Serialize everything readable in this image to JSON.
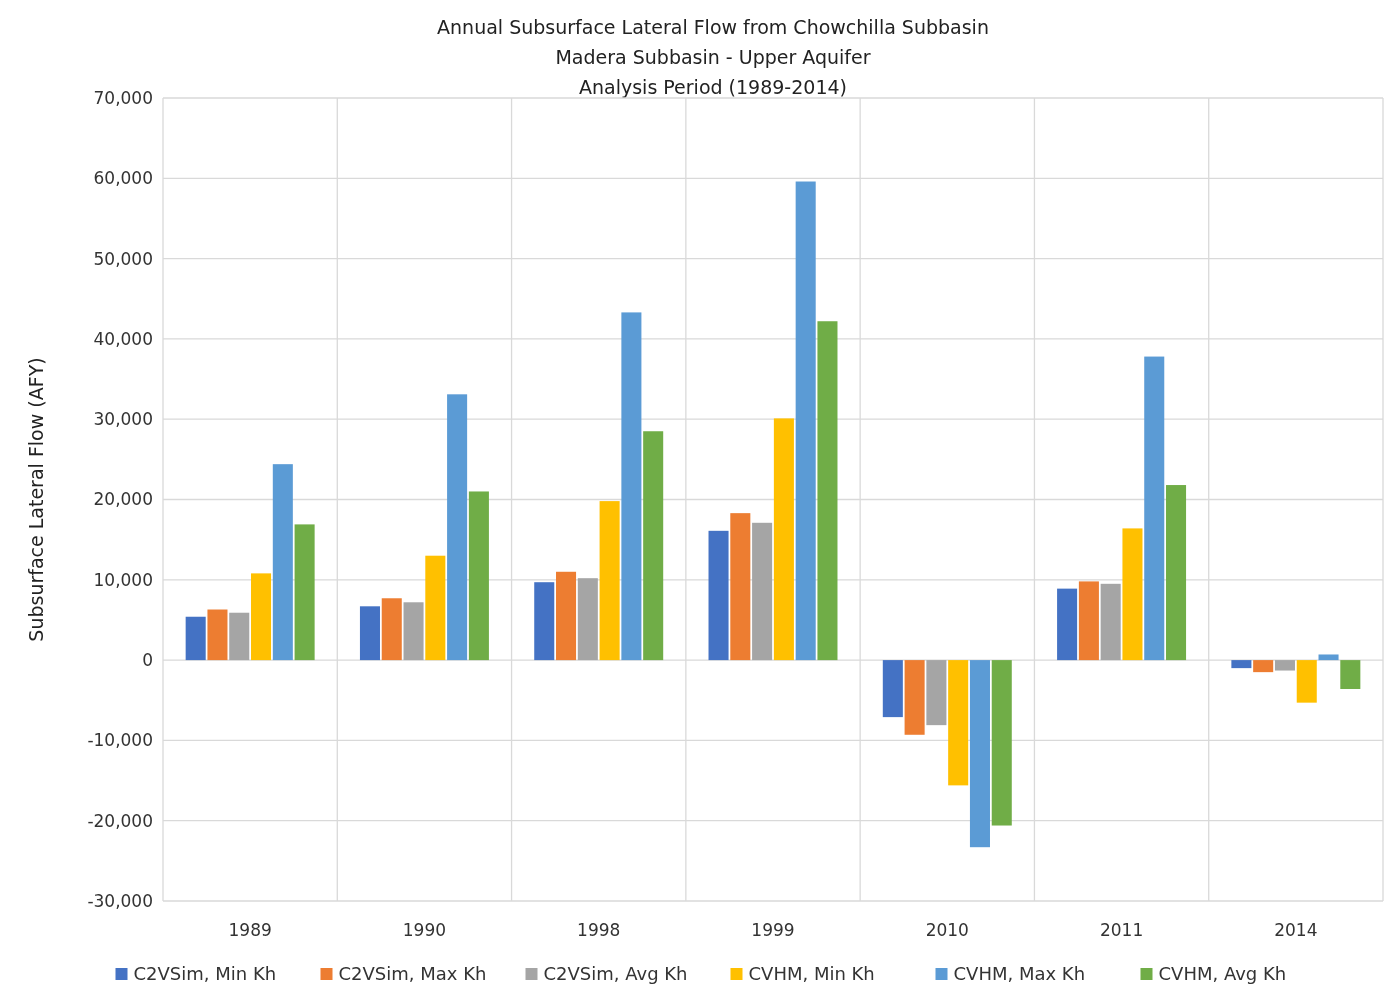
{
  "chart_data": {
    "type": "bar",
    "title": "Annual Subsurface Lateral Flow from Chowchilla Subbasin",
    "subtitle": "Madera Subbasin - Upper Aquifer\nAnalysis Period (1989-2014)",
    "ylabel": "Subsurface Lateral Flow (AFY)",
    "categories": [
      "1989",
      "1990",
      "1998",
      "1999",
      "2010",
      "2011",
      "2014"
    ],
    "series": [
      {
        "name": "C2VSim, Min Kh",
        "color": "#4472c4",
        "values": [
          5400,
          6700,
          9700,
          16100,
          -7100,
          8900,
          -1000
        ]
      },
      {
        "name": "C2VSim, Max Kh",
        "color": "#ed7d31",
        "values": [
          6300,
          7700,
          11000,
          18300,
          -9300,
          9800,
          -1500
        ]
      },
      {
        "name": "C2VSim, Avg Kh",
        "color": "#a5a5a5",
        "values": [
          5900,
          7200,
          10200,
          17100,
          -8100,
          9500,
          -1300
        ]
      },
      {
        "name": "CVHM, Min Kh",
        "color": "#ffc000",
        "values": [
          10800,
          13000,
          19800,
          30100,
          -15600,
          16400,
          -5300
        ]
      },
      {
        "name": "CVHM, Max Kh",
        "color": "#5b9bd5",
        "values": [
          24400,
          33100,
          43300,
          59600,
          -23300,
          37800,
          700
        ]
      },
      {
        "name": "CVHM, Avg Kh",
        "color": "#70ad47",
        "values": [
          16900,
          21000,
          28500,
          42200,
          -20600,
          21800,
          -3600
        ]
      }
    ],
    "ylim": [
      -30000,
      70000
    ],
    "yticks": [
      {
        "value": -30000,
        "label": "-30,000"
      },
      {
        "value": -20000,
        "label": "-20,000"
      },
      {
        "value": -10000,
        "label": "-10,000"
      },
      0,
      {
        "value": 10000,
        "label": "10,000"
      },
      {
        "value": 20000,
        "label": "20,000"
      },
      {
        "value": 30000,
        "label": "30,000"
      },
      {
        "value": 40000,
        "label": "40,000"
      },
      {
        "value": 50000,
        "label": "50,000"
      },
      {
        "value": 60000,
        "label": "60,000"
      },
      {
        "value": 70000,
        "label": "70,000"
      }
    ],
    "grid": true,
    "legend": "bottom"
  }
}
